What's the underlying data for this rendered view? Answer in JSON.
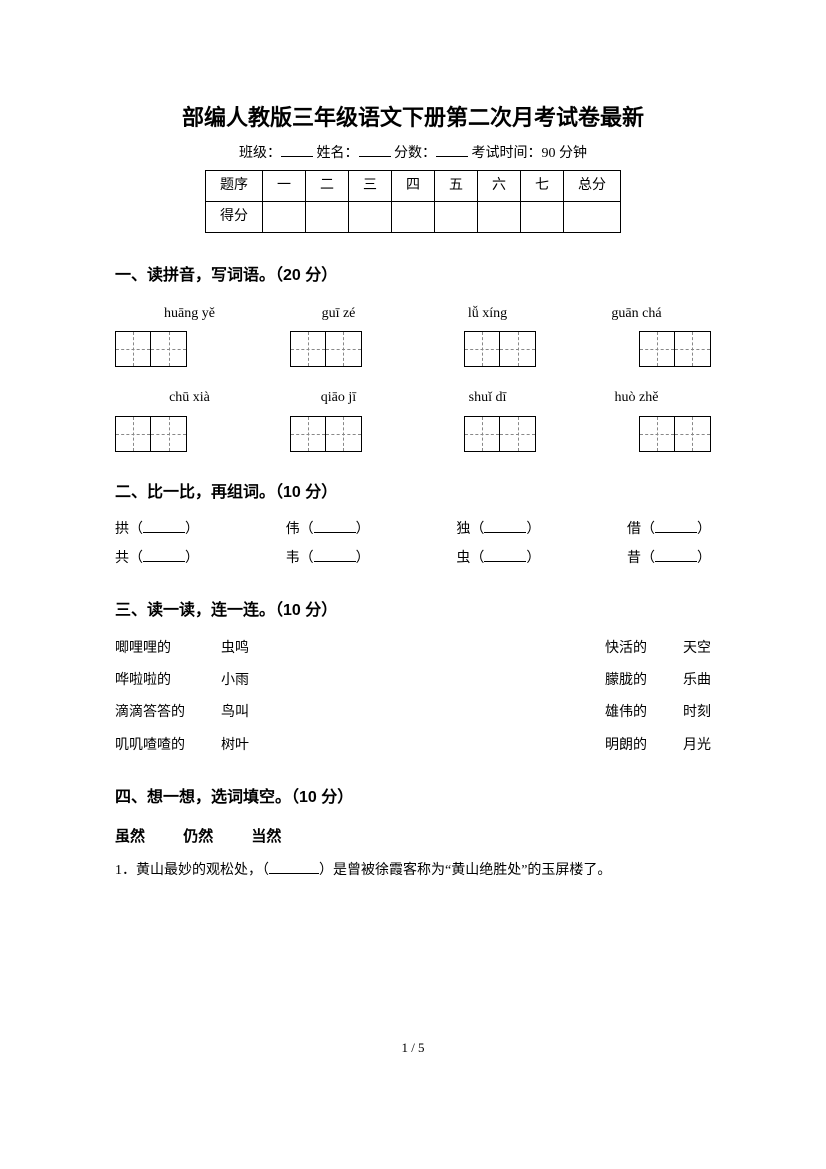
{
  "title": "部编人教版三年级语文下册第二次月考试卷最新",
  "headerInfo": {
    "classLabel": "班级：",
    "nameLabel": "姓名：",
    "scoreLabel": "分数：",
    "timeLabel": "考试时间：90 分钟"
  },
  "scoreTable": {
    "rowHeaderA": "题序",
    "rowHeaderB": "得分",
    "cols": [
      "一",
      "二",
      "三",
      "四",
      "五",
      "六",
      "七",
      "总分"
    ]
  },
  "section1": {
    "heading": "一、读拼音，写词语。（20 分）",
    "row1": [
      "huāng yě",
      "guī zé",
      "lǚ xíng",
      "guān chá"
    ],
    "row2": [
      "chū xià",
      "qiāo jī",
      "shuǐ dī",
      "huò zhě"
    ]
  },
  "section2": {
    "heading": "二、比一比，再组词。（10 分）",
    "pairs": [
      {
        "a": "拱",
        "b": "共"
      },
      {
        "a": "伟",
        "b": "韦"
      },
      {
        "a": "独",
        "b": "虫"
      },
      {
        "a": "借",
        "b": "昔"
      }
    ]
  },
  "section3": {
    "heading": "三、读一读，连一连。（10 分）",
    "leftA": [
      "唧哩哩的",
      "哗啦啦的",
      "滴滴答答的",
      "叽叽喳喳的"
    ],
    "leftB": [
      "虫鸣",
      "小雨",
      "鸟叫",
      "树叶"
    ],
    "rightA": [
      "快活的",
      "朦胧的",
      "雄伟的",
      "明朗的"
    ],
    "rightB": [
      "天空",
      "乐曲",
      "时刻",
      "月光"
    ]
  },
  "section4": {
    "heading": "四、想一想，选词填空。（10 分）",
    "options": [
      "虽然",
      "仍然",
      "当然"
    ],
    "sentence1_a": "1．黄山最妙的观松处，（",
    "sentence1_b": "）是曾被徐霞客称为“黄山绝胜处”的玉屏楼了。"
  },
  "pageNum": "1 / 5"
}
